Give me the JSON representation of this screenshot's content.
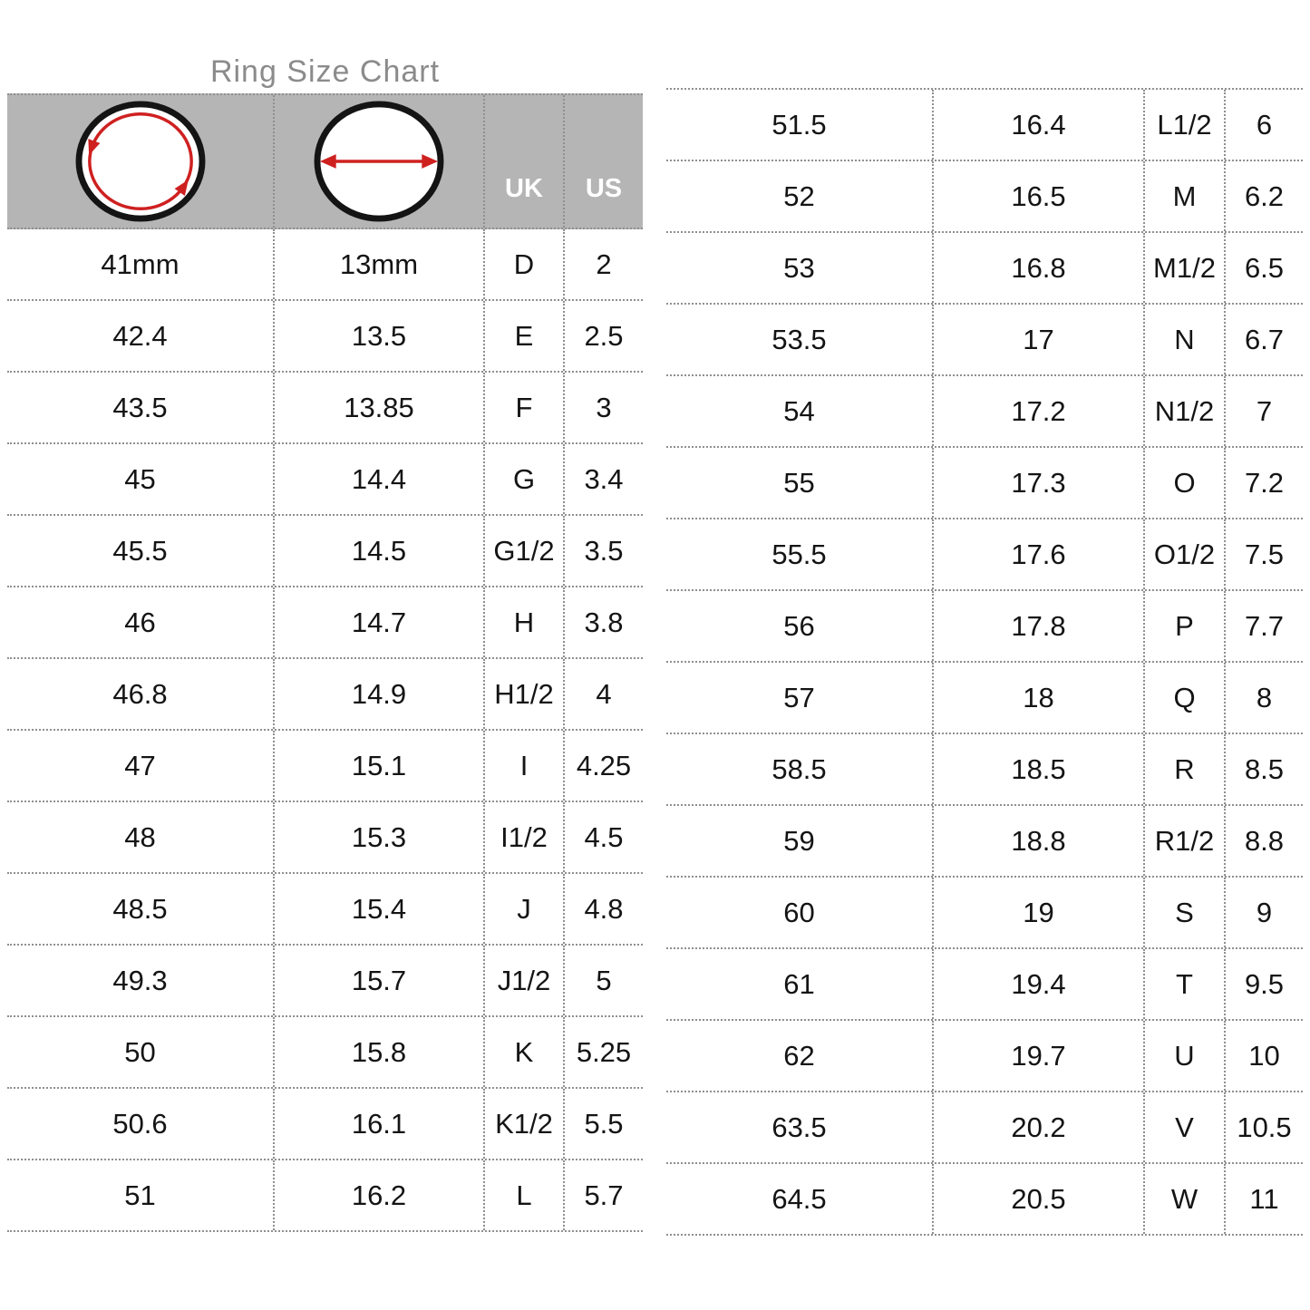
{
  "title": "Ring Size Chart",
  "colors": {
    "header_bg": "#b5b5b5",
    "red": "#cf2020",
    "title_gray": "#8b8b8b",
    "grid": "#8f8f8f",
    "ink": "#141414",
    "header_text": "#ffffff"
  },
  "header": {
    "uk": "UK",
    "us": "US",
    "icons": [
      "circumference-circle-icon",
      "diameter-circle-icon"
    ]
  },
  "chart_data": {
    "type": "table",
    "columns": [
      "circumference",
      "diameter",
      "UK",
      "US"
    ],
    "first_row_units": [
      "41mm",
      "13mm"
    ],
    "left_rows": [
      [
        "41mm",
        "13mm",
        "D",
        "2"
      ],
      [
        "42.4",
        "13.5",
        "E",
        "2.5"
      ],
      [
        "43.5",
        "13.85",
        "F",
        "3"
      ],
      [
        "45",
        "14.4",
        "G",
        "3.4"
      ],
      [
        "45.5",
        "14.5",
        "G1/2",
        "3.5"
      ],
      [
        "46",
        "14.7",
        "H",
        "3.8"
      ],
      [
        "46.8",
        "14.9",
        "H1/2",
        "4"
      ],
      [
        "47",
        "15.1",
        "I",
        "4.25"
      ],
      [
        "48",
        "15.3",
        "I1/2",
        "4.5"
      ],
      [
        "48.5",
        "15.4",
        "J",
        "4.8"
      ],
      [
        "49.3",
        "15.7",
        "J1/2",
        "5"
      ],
      [
        "50",
        "15.8",
        "K",
        "5.25"
      ],
      [
        "50.6",
        "16.1",
        "K1/2",
        "5.5"
      ],
      [
        "51",
        "16.2",
        "L",
        "5.7"
      ]
    ],
    "right_rows": [
      [
        "51.5",
        "16.4",
        "L1/2",
        "6"
      ],
      [
        "52",
        "16.5",
        "M",
        "6.2"
      ],
      [
        "53",
        "16.8",
        "M1/2",
        "6.5"
      ],
      [
        "53.5",
        "17",
        "N",
        "6.7"
      ],
      [
        "54",
        "17.2",
        "N1/2",
        "7"
      ],
      [
        "55",
        "17.3",
        "O",
        "7.2"
      ],
      [
        "55.5",
        "17.6",
        "O1/2",
        "7.5"
      ],
      [
        "56",
        "17.8",
        "P",
        "7.7"
      ],
      [
        "57",
        "18",
        "Q",
        "8"
      ],
      [
        "58.5",
        "18.5",
        "R",
        "8.5"
      ],
      [
        "59",
        "18.8",
        "R1/2",
        "8.8"
      ],
      [
        "60",
        "19",
        "S",
        "9"
      ],
      [
        "61",
        "19.4",
        "T",
        "9.5"
      ],
      [
        "62",
        "19.7",
        "U",
        "10"
      ],
      [
        "63.5",
        "20.2",
        "V",
        "10.5"
      ],
      [
        "64.5",
        "20.5",
        "W",
        "11"
      ]
    ]
  }
}
